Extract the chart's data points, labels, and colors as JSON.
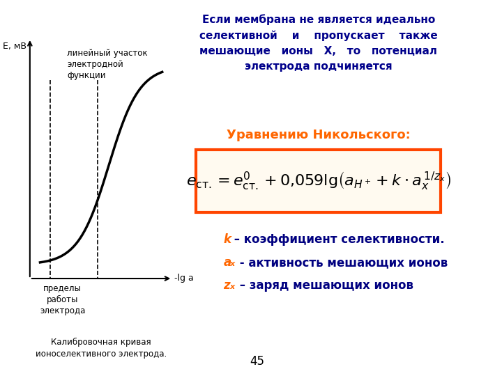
{
  "bg_color": "#ffffff",
  "title_text": "Если мембрана не является идеально\nселективной    и    пропускает    также\nмешающие   ионы   Х,   то   потенциал\nэлектрода подчиняется",
  "title_color": "#00008B",
  "nernst_label": "Уравнению Никольского:",
  "nernst_label_color": "#FF6600",
  "formula_box_color": "#FF4500",
  "bullet1_k": "k",
  "bullet1_text": " – коэффициент селективности.",
  "bullet2_a": "a",
  "bullet2_sub": "x",
  "bullet2_text": " - активность мешающих ионов",
  "bullet3_z": "z",
  "bullet3_sub": "x",
  "bullet3_text": " – заряд мешающих ионов",
  "bullet_color_bold": "#FF6600",
  "bullet_text_color": "#000080",
  "graph_label_E": "E, мВ",
  "graph_label_lg": "-lg a",
  "graph_label_linear": "линейный участок\nэлектродной\nфункции",
  "graph_label_limits": "пределы\nработы\nэлектрода",
  "graph_caption": "Калибровочная кривая\nионоселективного электрода.",
  "page_number": "45"
}
